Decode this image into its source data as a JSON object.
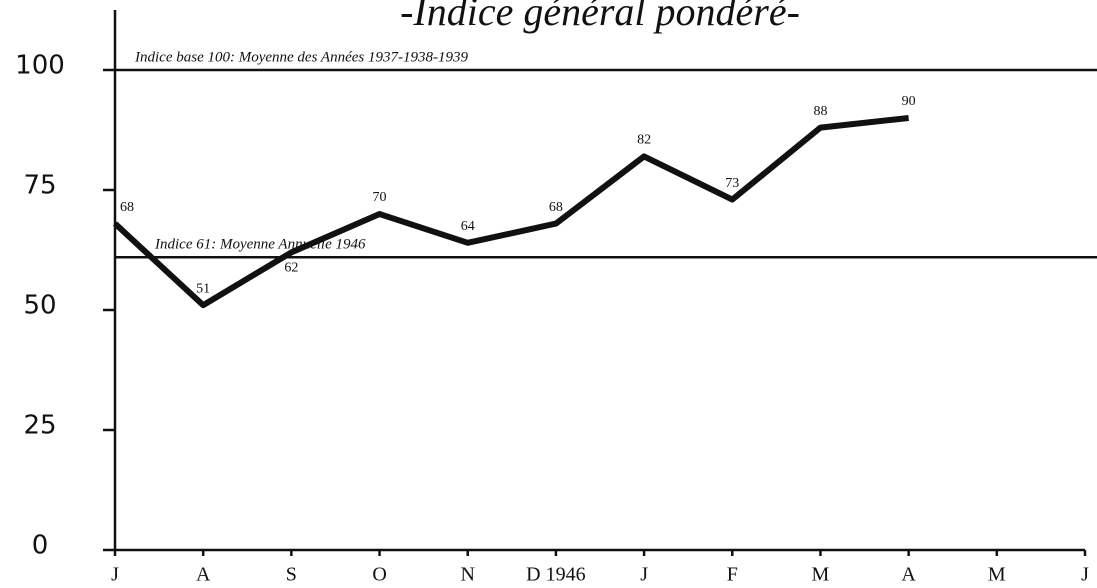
{
  "chart_data": {
    "type": "line",
    "title": "-Indice général pondéré-",
    "categories": [
      "J",
      "A",
      "S",
      "O",
      "N",
      "D 1946",
      "J",
      "F",
      "M",
      "A",
      "M",
      "J"
    ],
    "values": [
      68,
      51,
      62,
      70,
      64,
      68,
      82,
      73,
      88,
      90,
      null,
      null
    ],
    "color": "#111111",
    "ylim": [
      0,
      100
    ],
    "yticks": [
      0,
      25,
      50,
      75,
      100
    ],
    "annotations": [
      {
        "label": "Indice base 100: Moyenne des Années 1937-1938-1939",
        "value": 100
      },
      {
        "label": "Indice 61: Moyenne Annuelle 1946",
        "value": 61
      }
    ]
  }
}
